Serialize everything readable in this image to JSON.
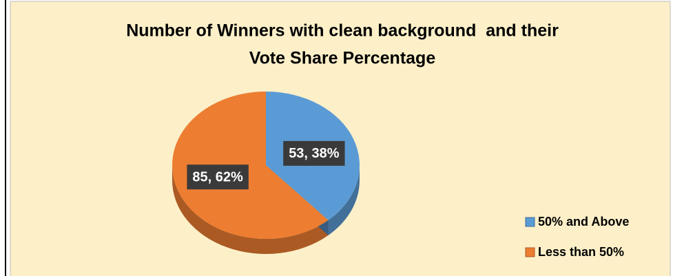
{
  "chart_data": {
    "type": "pie",
    "title": [
      "Number of Winners with clean background  and their",
      "Vote Share Percentage"
    ],
    "categories": [
      "50% and Above",
      "Less than 50%"
    ],
    "values": [
      53,
      85
    ],
    "value_labels": [
      "53, 38%",
      "85, 62%"
    ],
    "colors": [
      "#5b9bd5",
      "#ed7d31"
    ],
    "legend": "bottom-right"
  }
}
